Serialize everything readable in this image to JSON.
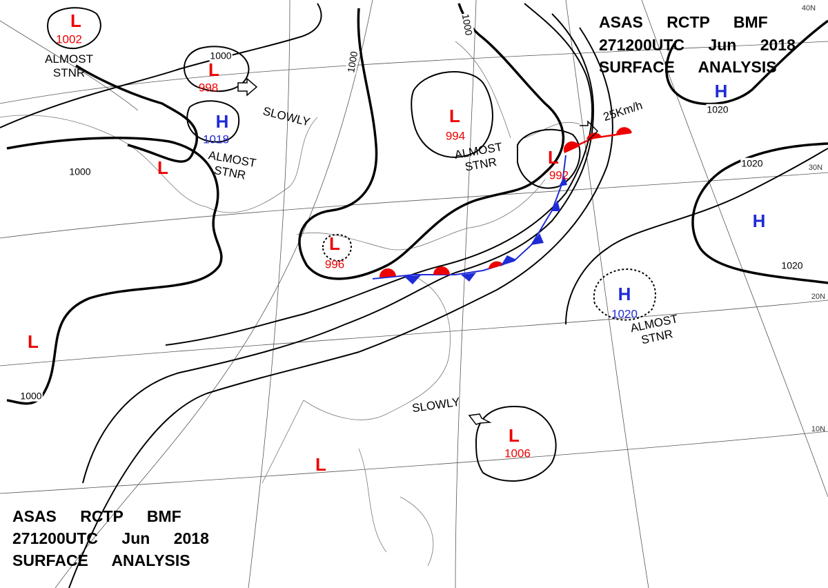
{
  "header": {
    "lines": [
      "ASAS RCTP BMF",
      "271200UTC Jun 2018",
      "SURFACE ANALYSIS"
    ]
  },
  "centers": [
    {
      "letter": "L",
      "value": "1002"
    },
    {
      "letter": "L",
      "value": "998"
    },
    {
      "letter": "H",
      "value": "1018"
    },
    {
      "letter": "L",
      "value": null
    },
    {
      "letter": "L",
      "value": "994"
    },
    {
      "letter": "L",
      "value": "992"
    },
    {
      "letter": "L",
      "value": "996"
    },
    {
      "letter": "H",
      "value": null
    },
    {
      "letter": "H",
      "value": null
    },
    {
      "letter": "H",
      "value": "1020"
    },
    {
      "letter": "L",
      "value": null
    },
    {
      "letter": "L",
      "value": null
    },
    {
      "letter": "L",
      "value": "1006"
    }
  ],
  "isobar_labels": [
    "1000",
    "1000",
    "1000",
    "1000",
    "1000",
    "1020",
    "1020",
    "1020"
  ],
  "annotations": [
    "SLOWLY",
    "ALMOST STNR",
    "ALMOST STNR",
    "ALMOST STNR",
    "ALMOST STNR",
    "SLOWLY",
    "25Km/h"
  ],
  "latitude_labels": [
    "40N",
    "30N",
    "20N",
    "10N"
  ]
}
